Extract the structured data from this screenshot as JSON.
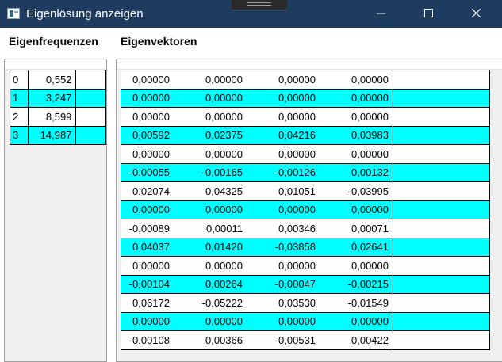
{
  "window": {
    "title": "Eigenlösung anzeigen"
  },
  "headings": {
    "frequencies": "Eigenfrequenzen",
    "vectors": "Eigenvektoren"
  },
  "frequencies": [
    {
      "index": "0",
      "value": "0,552",
      "highlighted": false
    },
    {
      "index": "1",
      "value": "3,247",
      "highlighted": true
    },
    {
      "index": "2",
      "value": "8,599",
      "highlighted": false
    },
    {
      "index": "3",
      "value": "14,987",
      "highlighted": true
    }
  ],
  "vectors": [
    {
      "values": [
        "0,00000",
        "0,00000",
        "0,00000",
        "0,00000"
      ],
      "highlighted": false
    },
    {
      "values": [
        "0,00000",
        "0,00000",
        "0,00000",
        "0,00000"
      ],
      "highlighted": true
    },
    {
      "values": [
        "0,00000",
        "0,00000",
        "0,00000",
        "0,00000"
      ],
      "highlighted": false
    },
    {
      "values": [
        "0,00592",
        "0,02375",
        "0,04216",
        "0,03983"
      ],
      "highlighted": true
    },
    {
      "values": [
        "0,00000",
        "0,00000",
        "0,00000",
        "0,00000"
      ],
      "highlighted": false
    },
    {
      "values": [
        "-0,00055",
        "-0,00165",
        "-0,00126",
        "0,00132"
      ],
      "highlighted": true
    },
    {
      "values": [
        "0,02074",
        "0,04325",
        "0,01051",
        "-0,03995"
      ],
      "highlighted": false
    },
    {
      "values": [
        "0,00000",
        "0,00000",
        "0,00000",
        "0,00000"
      ],
      "highlighted": true
    },
    {
      "values": [
        "-0,00089",
        "0,00011",
        "0,00346",
        "0,00071"
      ],
      "highlighted": false
    },
    {
      "values": [
        "0,04037",
        "0,01420",
        "-0,03858",
        "0,02641"
      ],
      "highlighted": true
    },
    {
      "values": [
        "0,00000",
        "0,00000",
        "0,00000",
        "0,00000"
      ],
      "highlighted": false
    },
    {
      "values": [
        "-0,00104",
        "0,00264",
        "-0,00047",
        "-0,00215"
      ],
      "highlighted": true
    },
    {
      "values": [
        "0,06172",
        "-0,05222",
        "0,03530",
        "-0,01549"
      ],
      "highlighted": false
    },
    {
      "values": [
        "0,00000",
        "0,00000",
        "0,00000",
        "0,00000"
      ],
      "highlighted": true
    },
    {
      "values": [
        "-0,00108",
        "0,00366",
        "-0,00531",
        "0,00422"
      ],
      "highlighted": false
    }
  ],
  "colors": {
    "titlebar": "#1e3b60",
    "highlight": "#00ffff"
  }
}
